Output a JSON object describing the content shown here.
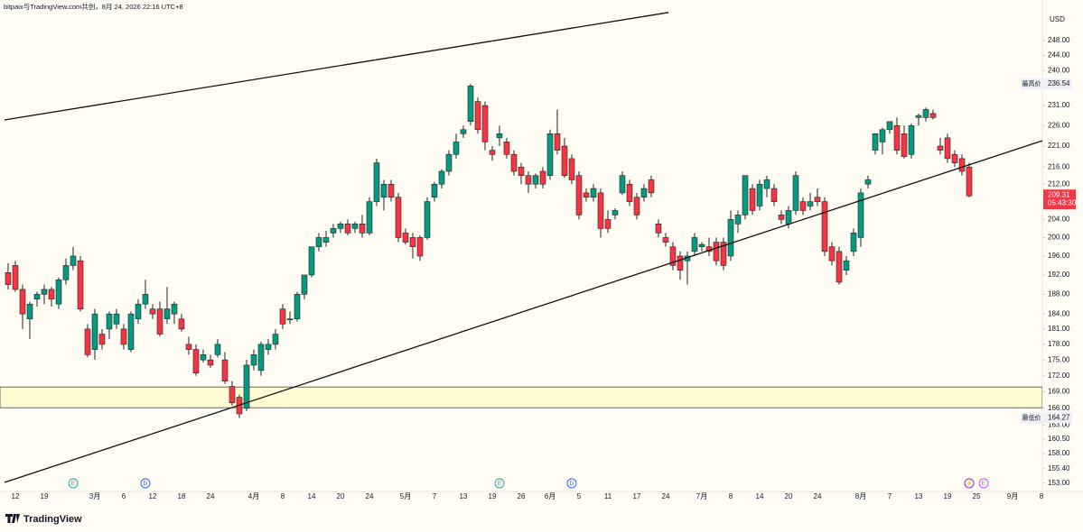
{
  "watermark": "bitpaix与TradingView.com共创，8月 24, 2026 22:16 UTC+8",
  "brand": "TradingView",
  "chart_data": {
    "type": "candlestick",
    "currency": "USD",
    "log_scale": true,
    "grid": false,
    "up_color": "#089981",
    "down_color": "#f23645",
    "ylim": [
      151.6,
      259.2
    ],
    "yticks": [
      {
        "value": 248,
        "label": "248.00"
      },
      {
        "value": 244,
        "label": "244.00"
      },
      {
        "value": 240,
        "label": "240.00"
      },
      {
        "value": 231,
        "label": "231.00"
      },
      {
        "value": 226,
        "label": "226.00"
      },
      {
        "value": 221,
        "label": "221.00"
      },
      {
        "value": 216,
        "label": "216.00"
      },
      {
        "value": 212,
        "label": "212.00"
      },
      {
        "value": 204,
        "label": "204.00"
      },
      {
        "value": 200,
        "label": "200.00"
      },
      {
        "value": 196,
        "label": "196.00"
      },
      {
        "value": 192,
        "label": "192.00"
      },
      {
        "value": 188,
        "label": "188.00"
      },
      {
        "value": 184,
        "label": "184.00"
      },
      {
        "value": 181,
        "label": "181.00"
      },
      {
        "value": 178,
        "label": "178.00"
      },
      {
        "value": 175,
        "label": "175.00"
      },
      {
        "value": 172,
        "label": "172.00"
      },
      {
        "value": 169,
        "label": "169.00"
      },
      {
        "value": 166,
        "label": "166.00"
      },
      {
        "value": 163,
        "label": "163.00"
      },
      {
        "value": 160.5,
        "label": "160.50"
      },
      {
        "value": 158,
        "label": "158.00"
      },
      {
        "value": 155.4,
        "label": "155.40"
      },
      {
        "value": 153,
        "label": "153.00"
      }
    ],
    "xticks": [
      {
        "value": 1,
        "label": "12"
      },
      {
        "value": 5,
        "label": "19"
      },
      {
        "value": 12,
        "label": "3月"
      },
      {
        "value": 16,
        "label": "6"
      },
      {
        "value": 20,
        "label": "12"
      },
      {
        "value": 24,
        "label": "18"
      },
      {
        "value": 28,
        "label": "24"
      },
      {
        "value": 34,
        "label": "4月"
      },
      {
        "value": 38,
        "label": "8"
      },
      {
        "value": 42,
        "label": "14"
      },
      {
        "value": 46,
        "label": "20"
      },
      {
        "value": 50,
        "label": "24"
      },
      {
        "value": 55,
        "label": "5月"
      },
      {
        "value": 59,
        "label": "7"
      },
      {
        "value": 63,
        "label": "13"
      },
      {
        "value": 67,
        "label": "19"
      },
      {
        "value": 71,
        "label": "26"
      },
      {
        "value": 75,
        "label": "6月"
      },
      {
        "value": 79,
        "label": "5"
      },
      {
        "value": 83,
        "label": "11"
      },
      {
        "value": 87,
        "label": "17"
      },
      {
        "value": 91,
        "label": "24"
      },
      {
        "value": 96,
        "label": "7月"
      },
      {
        "value": 100,
        "label": "8"
      },
      {
        "value": 104,
        "label": "14"
      },
      {
        "value": 108,
        "label": "20"
      },
      {
        "value": 112,
        "label": "24"
      },
      {
        "value": 118,
        "label": "8月"
      },
      {
        "value": 122,
        "label": "7"
      },
      {
        "value": 126,
        "label": "13"
      },
      {
        "value": 130,
        "label": "19"
      },
      {
        "value": 134,
        "label": "25"
      },
      {
        "value": 139,
        "label": "9月"
      },
      {
        "value": 143,
        "label": "8"
      }
    ],
    "high_marker": {
      "text": "最高价",
      "value": 236.54,
      "label": "236.54"
    },
    "low_marker": {
      "text": "最低价",
      "value": 164.27,
      "label": "164.27"
    },
    "last_price": {
      "value": 209.31,
      "label": "209.31",
      "countdown": "05:43:30"
    },
    "zone": [
      166.1,
      169.9
    ],
    "trend_lines": [
      {
        "from": [
          -0.5,
          227.4
        ],
        "to": [
          91.4,
          255.7
        ]
      },
      {
        "from": [
          -0.5,
          153.1
        ],
        "to": [
          146.75,
          224.4
        ]
      }
    ],
    "events": [
      {
        "index": 9,
        "label": "E",
        "color": "#22ab94"
      },
      {
        "index": 19,
        "label": "D",
        "color": "#2962ff"
      },
      {
        "index": 68,
        "label": "E",
        "color": "#22ab94"
      },
      {
        "index": 78,
        "label": "D",
        "color": "#2962ff"
      },
      {
        "index": 133,
        "label": "⚡",
        "color": "#9c27b0"
      },
      {
        "index": 135,
        "label": "E",
        "color": "#e040fb"
      }
    ],
    "ohlc": [
      [
        192.5,
        194.5,
        189,
        190
      ],
      [
        194,
        195,
        188.5,
        189
      ],
      [
        189,
        190,
        181,
        184
      ],
      [
        183,
        186.5,
        179,
        186
      ],
      [
        187,
        188.5,
        185.5,
        188
      ],
      [
        188,
        190,
        186,
        189
      ],
      [
        189,
        189.5,
        185.5,
        187
      ],
      [
        186,
        191.5,
        185,
        191
      ],
      [
        191,
        195.5,
        190,
        194
      ],
      [
        194,
        198,
        193,
        196
      ],
      [
        195,
        196,
        184.5,
        185
      ],
      [
        181,
        182,
        175.5,
        176
      ],
      [
        177,
        185,
        175,
        184
      ],
      [
        180,
        181,
        177,
        178
      ],
      [
        181,
        184.5,
        179,
        184
      ],
      [
        182,
        185,
        181,
        184
      ],
      [
        181,
        182,
        177,
        178
      ],
      [
        177,
        184.5,
        176.5,
        184
      ],
      [
        183,
        187,
        182,
        186
      ],
      [
        186,
        191,
        185,
        188
      ],
      [
        185,
        186,
        183,
        184
      ],
      [
        185,
        186.5,
        179.5,
        180
      ],
      [
        183,
        189.5,
        182,
        185
      ],
      [
        184,
        186.5,
        182,
        186
      ],
      [
        183,
        184,
        180.5,
        181
      ],
      [
        178,
        179.5,
        176,
        177
      ],
      [
        177,
        178,
        172,
        172.5
      ],
      [
        175,
        177,
        174.5,
        176
      ],
      [
        175,
        176,
        173.5,
        174
      ],
      [
        176,
        179,
        175.5,
        178
      ],
      [
        175,
        176.5,
        170.5,
        171
      ],
      [
        170,
        171,
        166.5,
        167
      ],
      [
        168,
        168.5,
        164.27,
        165
      ],
      [
        166,
        175,
        165.5,
        174
      ],
      [
        174,
        177,
        173,
        176
      ],
      [
        173,
        178.5,
        172,
        178
      ],
      [
        177,
        179,
        176,
        178
      ],
      [
        178,
        181,
        177,
        180
      ],
      [
        185,
        186,
        181,
        182
      ],
      [
        183,
        184.5,
        182,
        183
      ],
      [
        183,
        188.5,
        182.5,
        188
      ],
      [
        188,
        192,
        187,
        192
      ],
      [
        192,
        198,
        191.5,
        198
      ],
      [
        198,
        201,
        197,
        200
      ],
      [
        199,
        201.5,
        198,
        200
      ],
      [
        201,
        203,
        200,
        202
      ],
      [
        202,
        203.5,
        201,
        203
      ],
      [
        203,
        204,
        200.5,
        201
      ],
      [
        202,
        203.5,
        201,
        203
      ],
      [
        203,
        205,
        200,
        201
      ],
      [
        201,
        209,
        200.5,
        208
      ],
      [
        208,
        218,
        207,
        217
      ],
      [
        209,
        213,
        206,
        212
      ],
      [
        212,
        213,
        208,
        209
      ],
      [
        209,
        210,
        199,
        200
      ],
      [
        201,
        202,
        198.5,
        199
      ],
      [
        200,
        201,
        195.5,
        198
      ],
      [
        200,
        200.5,
        195,
        196
      ],
      [
        200,
        209,
        199.5,
        208
      ],
      [
        209,
        212.5,
        208,
        212
      ],
      [
        212,
        215.5,
        211,
        215
      ],
      [
        215,
        220,
        214,
        219
      ],
      [
        219,
        224,
        218,
        222
      ],
      [
        224,
        226,
        223,
        225
      ],
      [
        227,
        236.54,
        226,
        236
      ],
      [
        232,
        233,
        224,
        225
      ],
      [
        231,
        232,
        220,
        222
      ],
      [
        220,
        221,
        217.5,
        219
      ],
      [
        223,
        226,
        221,
        224
      ],
      [
        222,
        223,
        218,
        219
      ],
      [
        219,
        220,
        214,
        215
      ],
      [
        216,
        217,
        212,
        214
      ],
      [
        214,
        215,
        210,
        212
      ],
      [
        212,
        214.5,
        211,
        214
      ],
      [
        215,
        216,
        211,
        212
      ],
      [
        214,
        225,
        213,
        224
      ],
      [
        224,
        230,
        219,
        220
      ],
      [
        221,
        223,
        213.5,
        214
      ],
      [
        218,
        219,
        212,
        213
      ],
      [
        214,
        215,
        204,
        205
      ],
      [
        210,
        211,
        208,
        209
      ],
      [
        209,
        212,
        208,
        211
      ],
      [
        210,
        211,
        200,
        202
      ],
      [
        204,
        206,
        201,
        202
      ],
      [
        205,
        206.5,
        204,
        206
      ],
      [
        210,
        215,
        209.5,
        214
      ],
      [
        212,
        213,
        207,
        208
      ],
      [
        209,
        210,
        204,
        205
      ],
      [
        209,
        212,
        208,
        211
      ],
      [
        213,
        214,
        209,
        210
      ],
      [
        203,
        204,
        200,
        201
      ],
      [
        200,
        201,
        198,
        199
      ],
      [
        198,
        199,
        193,
        194
      ],
      [
        196,
        197,
        191,
        193
      ],
      [
        195,
        197,
        190,
        196
      ],
      [
        197,
        201,
        196,
        200
      ],
      [
        198,
        199,
        197,
        198.5
      ],
      [
        198,
        200,
        196,
        197
      ],
      [
        199,
        200,
        194,
        195
      ],
      [
        199,
        200,
        193,
        194
      ],
      [
        196,
        206,
        195,
        204
      ],
      [
        203,
        206,
        201,
        205
      ],
      [
        205,
        214,
        204,
        214
      ],
      [
        211,
        212,
        205,
        206
      ],
      [
        207,
        213,
        206,
        212
      ],
      [
        211,
        214,
        209,
        213
      ],
      [
        211,
        212,
        207,
        208
      ],
      [
        205,
        206,
        203,
        204
      ],
      [
        203,
        207,
        202,
        206
      ],
      [
        206,
        215,
        205,
        214
      ],
      [
        208,
        209,
        205,
        206
      ],
      [
        207,
        210,
        206,
        208
      ],
      [
        209,
        211,
        207,
        208
      ],
      [
        208,
        209,
        196,
        197
      ],
      [
        198,
        199,
        194,
        195
      ],
      [
        197,
        198,
        190,
        190.5
      ],
      [
        193,
        196,
        192,
        195
      ],
      [
        197,
        202,
        196,
        201
      ],
      [
        200,
        211,
        198,
        210
      ],
      [
        212,
        214,
        211,
        213
      ],
      [
        220,
        224,
        219,
        224
      ],
      [
        222,
        225.5,
        219,
        225
      ],
      [
        225,
        227,
        224,
        227
      ],
      [
        226,
        228,
        219,
        220
      ],
      [
        224,
        226,
        218,
        218.5
      ],
      [
        219,
        226.5,
        218,
        226
      ],
      [
        228,
        229,
        226,
        228.5
      ],
      [
        228,
        230.5,
        227,
        230
      ],
      [
        229,
        230,
        227.5,
        228
      ],
      [
        221,
        223,
        219,
        220
      ],
      [
        223,
        224,
        217,
        218
      ],
      [
        219,
        220,
        216,
        217
      ],
      [
        218,
        219,
        214,
        215
      ],
      [
        216,
        217,
        209,
        209.31
      ]
    ]
  }
}
